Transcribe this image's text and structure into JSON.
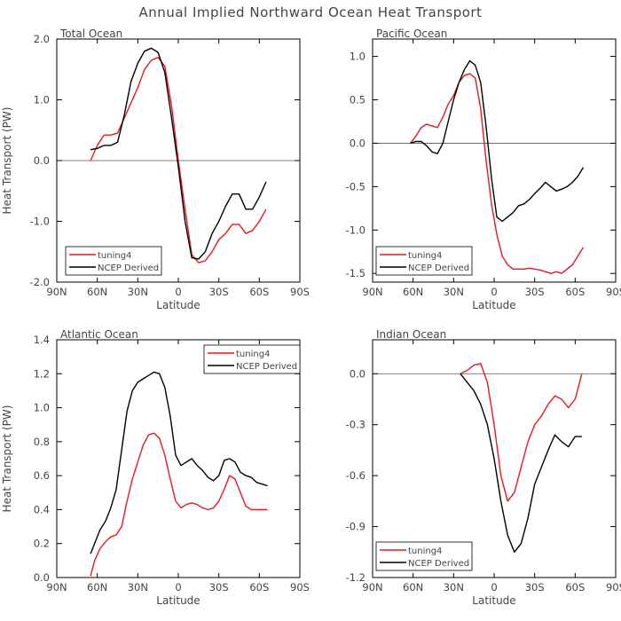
{
  "suptitle": "Annual Implied Northward Ocean Heat Transport",
  "colors": {
    "tuning4": "#e8191c",
    "NCEP Derived": "#000000"
  },
  "chart_data": [
    {
      "type": "line",
      "title": "Total Ocean",
      "xlabel": "Latitude",
      "ylabel": "Heat Transport (PW)",
      "xticks": [
        60,
        30,
        0,
        -30,
        -60
      ],
      "xtick_labels": [
        "90N",
        "60N",
        "30N",
        "0",
        "30S",
        "60S",
        "90S"
      ],
      "xtick_values": [
        90,
        60,
        30,
        0,
        -30,
        -60,
        -90
      ],
      "xlim": [
        90,
        -90
      ],
      "ylim": [
        -2.0,
        2.0
      ],
      "yticks": [
        -2.0,
        -1.0,
        0.0,
        1.0,
        2.0
      ],
      "ytick_labels": [
        "-2.0",
        "-1.0",
        "0.0",
        "1.0",
        "2.0"
      ],
      "zero_line": true,
      "legend": "bottom-left",
      "series": [
        {
          "name": "tuning4",
          "x": [
            65,
            60,
            55,
            50,
            45,
            40,
            35,
            30,
            25,
            20,
            15,
            10,
            5,
            0,
            -5,
            -10,
            -15,
            -20,
            -25,
            -30,
            -35,
            -40,
            -45,
            -50,
            -55,
            -60,
            -65
          ],
          "y": [
            0.0,
            0.25,
            0.42,
            0.42,
            0.45,
            0.7,
            0.95,
            1.2,
            1.5,
            1.65,
            1.7,
            1.55,
            0.9,
            0.0,
            -0.8,
            -1.55,
            -1.68,
            -1.65,
            -1.5,
            -1.3,
            -1.2,
            -1.05,
            -1.05,
            -1.2,
            -1.15,
            -1.0,
            -0.8
          ]
        },
        {
          "name": "NCEP Derived",
          "x": [
            65,
            60,
            55,
            50,
            45,
            40,
            35,
            30,
            25,
            20,
            15,
            10,
            5,
            0,
            -5,
            -10,
            -15,
            -20,
            -25,
            -30,
            -35,
            -40,
            -45,
            -50,
            -55,
            -60,
            -65
          ],
          "y": [
            0.18,
            0.2,
            0.25,
            0.25,
            0.3,
            0.75,
            1.3,
            1.6,
            1.8,
            1.85,
            1.78,
            1.45,
            0.7,
            -0.1,
            -1.0,
            -1.6,
            -1.62,
            -1.5,
            -1.2,
            -1.0,
            -0.75,
            -0.55,
            -0.55,
            -0.8,
            -0.8,
            -0.6,
            -0.35
          ]
        }
      ]
    },
    {
      "type": "line",
      "title": "Pacific Ocean",
      "xlabel": "Latitude",
      "ylabel": "",
      "xtick_labels": [
        "90N",
        "60N",
        "30N",
        "0",
        "30S",
        "60S",
        "90S"
      ],
      "xtick_values": [
        90,
        60,
        30,
        0,
        -30,
        -60,
        -90
      ],
      "xlim": [
        90,
        -90
      ],
      "ylim": [
        -1.6,
        1.2
      ],
      "yticks": [
        -1.5,
        -1.0,
        -0.5,
        0.0,
        0.5,
        1.0
      ],
      "ytick_labels": [
        "-1.5",
        "-1.0",
        "-0.5",
        "0.0",
        "0.5",
        "1.0"
      ],
      "zero_line": true,
      "legend": "bottom-left",
      "series": [
        {
          "name": "tuning4",
          "x": [
            62,
            58,
            54,
            50,
            46,
            42,
            38,
            34,
            30,
            26,
            22,
            18,
            14,
            10,
            6,
            2,
            -2,
            -6,
            -10,
            -14,
            -18,
            -22,
            -26,
            -30,
            -34,
            -38,
            -42,
            -46,
            -50,
            -54,
            -58,
            -62,
            -66
          ],
          "y": [
            0.0,
            0.08,
            0.18,
            0.22,
            0.2,
            0.18,
            0.3,
            0.45,
            0.55,
            0.7,
            0.78,
            0.8,
            0.75,
            0.4,
            -0.2,
            -0.7,
            -1.05,
            -1.3,
            -1.4,
            -1.45,
            -1.45,
            -1.45,
            -1.44,
            -1.45,
            -1.46,
            -1.48,
            -1.5,
            -1.48,
            -1.5,
            -1.45,
            -1.4,
            -1.3,
            -1.2
          ]
        },
        {
          "name": "NCEP Derived",
          "x": [
            62,
            58,
            54,
            50,
            46,
            42,
            38,
            34,
            30,
            26,
            22,
            18,
            14,
            10,
            6,
            2,
            -2,
            -6,
            -10,
            -14,
            -18,
            -22,
            -26,
            -30,
            -34,
            -38,
            -42,
            -46,
            -50,
            -54,
            -58,
            -62,
            -66
          ],
          "y": [
            0.0,
            0.02,
            0.02,
            -0.03,
            -0.1,
            -0.12,
            0.0,
            0.25,
            0.5,
            0.7,
            0.85,
            0.95,
            0.9,
            0.7,
            0.2,
            -0.4,
            -0.85,
            -0.9,
            -0.85,
            -0.8,
            -0.72,
            -0.7,
            -0.65,
            -0.58,
            -0.52,
            -0.45,
            -0.5,
            -0.55,
            -0.53,
            -0.5,
            -0.45,
            -0.38,
            -0.28
          ]
        }
      ]
    },
    {
      "type": "line",
      "title": "Atlantic Ocean",
      "xlabel": "Latitude",
      "ylabel": "Heat Transport (PW)",
      "xtick_labels": [
        "90N",
        "60N",
        "30N",
        "0",
        "30S",
        "60S",
        "90S"
      ],
      "xtick_values": [
        90,
        60,
        30,
        0,
        -30,
        -60,
        -90
      ],
      "xlim": [
        90,
        -90
      ],
      "ylim": [
        0.0,
        1.4
      ],
      "yticks": [
        0.0,
        0.2,
        0.4,
        0.6,
        0.8,
        1.0,
        1.2,
        1.4
      ],
      "ytick_labels": [
        "0.0",
        "0.2",
        "0.4",
        "0.6",
        "0.8",
        "1.0",
        "1.2",
        "1.4"
      ],
      "zero_line": false,
      "legend": "top-right",
      "series": [
        {
          "name": "tuning4",
          "x": [
            65,
            62,
            58,
            54,
            50,
            46,
            42,
            38,
            34,
            30,
            26,
            22,
            18,
            14,
            10,
            6,
            2,
            -2,
            -6,
            -10,
            -14,
            -18,
            -22,
            -26,
            -30,
            -34,
            -38,
            -42,
            -46,
            -50,
            -54,
            -58,
            -62,
            -66
          ],
          "y": [
            0.01,
            0.1,
            0.17,
            0.21,
            0.24,
            0.25,
            0.3,
            0.45,
            0.58,
            0.68,
            0.78,
            0.84,
            0.85,
            0.82,
            0.72,
            0.58,
            0.45,
            0.41,
            0.43,
            0.44,
            0.43,
            0.41,
            0.4,
            0.41,
            0.45,
            0.52,
            0.6,
            0.58,
            0.5,
            0.42,
            0.4,
            0.4,
            0.4,
            0.4
          ]
        },
        {
          "name": "NCEP Derived",
          "x": [
            65,
            62,
            58,
            54,
            50,
            46,
            42,
            38,
            34,
            30,
            26,
            22,
            18,
            14,
            10,
            6,
            2,
            -2,
            -6,
            -10,
            -14,
            -18,
            -22,
            -26,
            -30,
            -34,
            -38,
            -42,
            -46,
            -50,
            -54,
            -58,
            -62,
            -66
          ],
          "y": [
            0.14,
            0.2,
            0.28,
            0.33,
            0.41,
            0.52,
            0.75,
            0.98,
            1.1,
            1.15,
            1.17,
            1.19,
            1.21,
            1.2,
            1.12,
            0.95,
            0.72,
            0.66,
            0.68,
            0.7,
            0.66,
            0.63,
            0.59,
            0.57,
            0.6,
            0.69,
            0.7,
            0.68,
            0.62,
            0.6,
            0.59,
            0.56,
            0.55,
            0.54
          ]
        }
      ]
    },
    {
      "type": "line",
      "title": "Indian Ocean",
      "xlabel": "Latitude",
      "ylabel": "",
      "xtick_labels": [
        "90N",
        "60N",
        "30N",
        "0",
        "30S",
        "60S",
        "90S"
      ],
      "xtick_values": [
        90,
        60,
        30,
        0,
        -30,
        -60,
        -90
      ],
      "xlim": [
        90,
        -90
      ],
      "ylim": [
        -1.2,
        0.2
      ],
      "yticks": [
        -1.2,
        -0.9,
        -0.6,
        -0.3,
        0.0
      ],
      "ytick_labels": [
        "-1.2",
        "-0.9",
        "-0.6",
        "-0.3",
        "0.0"
      ],
      "zero_line": true,
      "legend": "bottom-left",
      "series": [
        {
          "name": "tuning4",
          "x": [
            25,
            20,
            15,
            10,
            5,
            0,
            -5,
            -10,
            -15,
            -20,
            -25,
            -30,
            -35,
            -40,
            -45,
            -50,
            -55,
            -60,
            -65
          ],
          "y": [
            0.0,
            0.02,
            0.05,
            0.06,
            -0.05,
            -0.3,
            -0.6,
            -0.75,
            -0.7,
            -0.55,
            -0.4,
            -0.3,
            -0.25,
            -0.18,
            -0.13,
            -0.15,
            -0.2,
            -0.15,
            0.0
          ]
        },
        {
          "name": "NCEP Derived",
          "x": [
            25,
            20,
            15,
            10,
            5,
            0,
            -5,
            -10,
            -15,
            -20,
            -25,
            -30,
            -35,
            -40,
            -45,
            -50,
            -55,
            -60,
            -65
          ],
          "y": [
            0.0,
            -0.05,
            -0.1,
            -0.18,
            -0.3,
            -0.5,
            -0.75,
            -0.95,
            -1.05,
            -1.0,
            -0.85,
            -0.65,
            -0.55,
            -0.45,
            -0.36,
            -0.4,
            -0.43,
            -0.37,
            -0.37
          ]
        }
      ]
    }
  ]
}
